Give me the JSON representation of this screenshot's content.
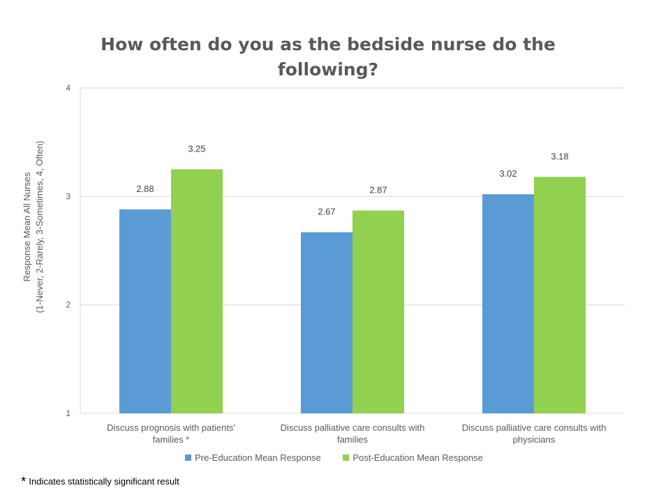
{
  "colors": {
    "pre": "#5b9bd5",
    "post": "#92d050",
    "grid": "#d9d9d9",
    "text": "#595959",
    "data_label": "#404040"
  },
  "footnote": {
    "star": "*",
    "text": "Indicates statistically significant result"
  },
  "chart_data": {
    "type": "bar",
    "title": "How often do you as the bedside nurse do the following?",
    "ylabel_lines": [
      "Response Mean  All Nurses",
      "(1-Never, 2-Rarely, 3-Sometimes, 4, Often)"
    ],
    "xlabel": "",
    "ylim": [
      1,
      4
    ],
    "yticks": [
      1,
      2,
      3,
      4
    ],
    "grid": true,
    "legend_position": "bottom",
    "categories": [
      [
        "Discuss prognosis with patients'",
        "families *"
      ],
      [
        "Discuss palliative care consults with",
        "families"
      ],
      [
        "Discuss palliative care consults with",
        "physicians"
      ]
    ],
    "series": [
      {
        "name": "Pre-Education Mean Response",
        "color_key": "pre",
        "values": [
          2.88,
          2.67,
          3.02
        ],
        "labels": [
          "2.88",
          "2.67",
          "3.02"
        ]
      },
      {
        "name": "Post-Education Mean Response",
        "color_key": "post",
        "values": [
          3.25,
          2.87,
          3.18
        ],
        "labels": [
          "3.25",
          "2.87",
          "3.18"
        ]
      }
    ]
  }
}
